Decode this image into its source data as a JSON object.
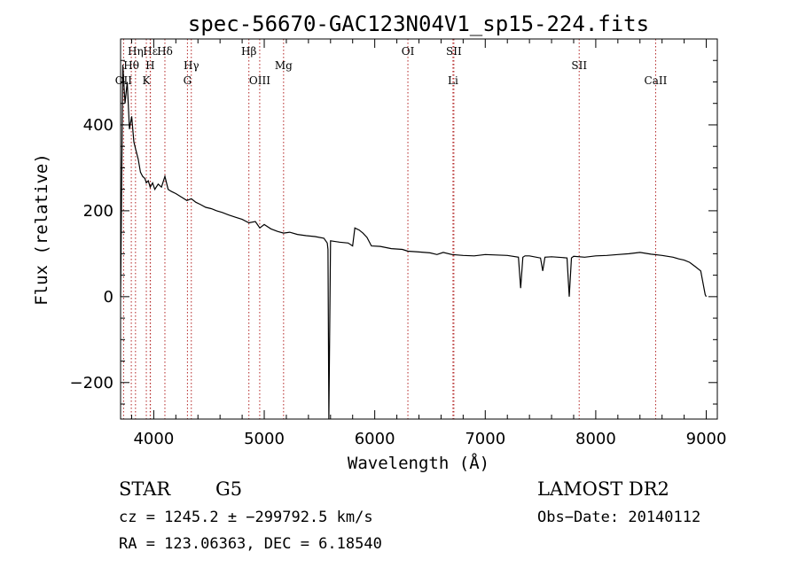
{
  "chart_data": {
    "type": "line",
    "title": "spec-56670-GAC123N04V1_sp15-224.fits",
    "xlabel": "Wavelength (Å)",
    "ylabel": "Flux (relative)",
    "xlim": [
      3700,
      9100
    ],
    "ylim": [
      -285,
      600
    ],
    "x_ticks": [
      4000,
      5000,
      6000,
      7000,
      8000,
      9000
    ],
    "y_ticks": [
      -200,
      0,
      200,
      400
    ],
    "x_tick_labels": [
      "4000",
      "5000",
      "6000",
      "7000",
      "8000",
      "9000"
    ],
    "y_tick_labels": [
      "−200",
      "0",
      "200",
      "400"
    ],
    "grid": false,
    "line_color": "#000000",
    "marker_color": "#b22222",
    "series": [
      {
        "x": [
          3700,
          3720,
          3740,
          3760,
          3780,
          3800,
          3820,
          3840,
          3860,
          3880,
          3900,
          3920,
          3933,
          3950,
          3968,
          3990,
          4010,
          4040,
          4070,
          4101,
          4130,
          4160,
          4200,
          4250,
          4300,
          4340,
          4380,
          4420,
          4470,
          4520,
          4570,
          4620,
          4680,
          4740,
          4800,
          4861,
          4920,
          4960,
          5000,
          5060,
          5120,
          5175,
          5230,
          5300,
          5380,
          5460,
          5540,
          5570,
          5577,
          5585,
          5600,
          5680,
          5760,
          5800,
          5820,
          5860,
          5893,
          5930,
          5970,
          6050,
          6150,
          6250,
          6300,
          6400,
          6500,
          6563,
          6620,
          6700,
          6800,
          6900,
          7000,
          7100,
          7200,
          7300,
          7320,
          7340,
          7360,
          7400,
          7500,
          7520,
          7540,
          7600,
          7700,
          7740,
          7760,
          7780,
          7800,
          7900,
          8000,
          8100,
          8200,
          8300,
          8400,
          8500,
          8600,
          8700,
          8750,
          8800,
          8850,
          8900,
          8950,
          8990,
          9000
        ],
        "y": [
          0,
          540,
          450,
          500,
          390,
          420,
          360,
          340,
          320,
          290,
          280,
          275,
          265,
          270,
          255,
          265,
          250,
          262,
          255,
          280,
          250,
          245,
          240,
          232,
          224,
          228,
          220,
          215,
          208,
          205,
          200,
          196,
          190,
          185,
          180,
          172,
          175,
          160,
          168,
          158,
          152,
          148,
          150,
          145,
          142,
          140,
          136,
          125,
          110,
          -285,
          130,
          127,
          125,
          118,
          160,
          155,
          148,
          138,
          118,
          117,
          112,
          110,
          106,
          104,
          102,
          98,
          103,
          98,
          96,
          95,
          98,
          97,
          96,
          92,
          20,
          92,
          95,
          95,
          90,
          60,
          92,
          93,
          91,
          90,
          0,
          90,
          94,
          92,
          95,
          96,
          98,
          100,
          103,
          99,
          96,
          92,
          88,
          85,
          80,
          70,
          60,
          5,
          0
        ]
      }
    ],
    "line_markers": [
      {
        "label": "Hη",
        "x": 3835,
        "row": 1
      },
      {
        "label": "Hθ",
        "x": 3797,
        "row": 2
      },
      {
        "label": "OII",
        "x": 3727,
        "row": 3
      },
      {
        "label": "Hε",
        "x": 3970,
        "row": 1
      },
      {
        "label": "H",
        "x": 3968,
        "row": 2
      },
      {
        "label": "K",
        "x": 3933,
        "row": 3
      },
      {
        "label": "Hδ",
        "x": 4101,
        "row": 1
      },
      {
        "label": "Hγ",
        "x": 4340,
        "row": 2
      },
      {
        "label": "G",
        "x": 4305,
        "row": 3
      },
      {
        "label": "Hβ",
        "x": 4861,
        "row": 1
      },
      {
        "label": "OIII",
        "x": 4959,
        "row": 3
      },
      {
        "label": "Mg",
        "x": 5175,
        "row": 2
      },
      {
        "label": "OI",
        "x": 6300,
        "row": 1
      },
      {
        "label": "SII",
        "x": 6716,
        "row": 1
      },
      {
        "label": "Li",
        "x": 6708,
        "row": 3
      },
      {
        "label": "SII",
        "x": 7850,
        "row": 2
      },
      {
        "label": "CaII",
        "x": 8542,
        "row": 3
      }
    ]
  },
  "info": {
    "object_class": "STAR",
    "subclass": "G5",
    "cz": "cz = 1245.2 ± −299792.5 km/s",
    "coords": "RA = 123.06363, DEC =   6.18540",
    "survey": "LAMOST DR2",
    "obs_date": "Obs−Date: 20140112"
  }
}
